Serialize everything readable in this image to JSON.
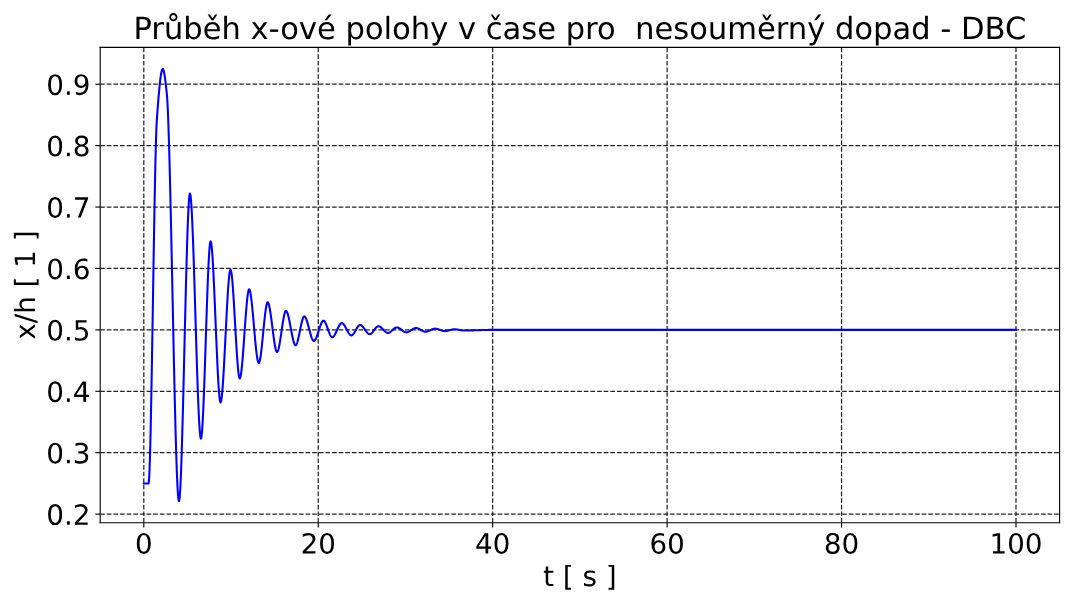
{
  "chart_data": {
    "type": "line",
    "title": "Průběh x-ové polohy v čase pro  nesouměrný dopad - DBC",
    "xlabel": "t [ s ]",
    "ylabel": "x/h [ 1 ]",
    "xlim": [
      -5,
      105
    ],
    "xticks": [
      0,
      20,
      40,
      60,
      80,
      100
    ],
    "ylim": [
      0.186,
      0.96
    ],
    "yticks": [
      0.2,
      0.3,
      0.4,
      0.5,
      0.6,
      0.7,
      0.8,
      0.9
    ],
    "grid": true,
    "line_style": "solid",
    "marker": "none",
    "series": [
      {
        "color": "#0000ff",
        "x": [
          0,
          0.54,
          1.5,
          2.17,
          2.63,
          4.03,
          5.29,
          6.55,
          7.66,
          8.8,
          9.94,
          11.0,
          12.08,
          13.18,
          14.2,
          15.28,
          16.3,
          17.4,
          18.4,
          19.5,
          20.6,
          21.6,
          22.7,
          23.8,
          24.8,
          25.9,
          26.9,
          28.0,
          29.0,
          30.1,
          31.2,
          32.3,
          33.4,
          34.5,
          35.6,
          36.7,
          40,
          60,
          80,
          100
        ],
        "values": [
          0.25,
          0.25,
          0.843,
          0.925,
          0.886,
          0.221,
          0.722,
          0.323,
          0.644,
          0.382,
          0.598,
          0.421,
          0.566,
          0.446,
          0.545,
          0.464,
          0.531,
          0.475,
          0.522,
          0.482,
          0.515,
          0.488,
          0.511,
          0.491,
          0.508,
          0.493,
          0.506,
          0.495,
          0.504,
          0.496,
          0.503,
          0.497,
          0.502,
          0.498,
          0.501,
          0.499,
          0.5,
          0.5,
          0.5,
          0.5
        ]
      }
    ]
  }
}
